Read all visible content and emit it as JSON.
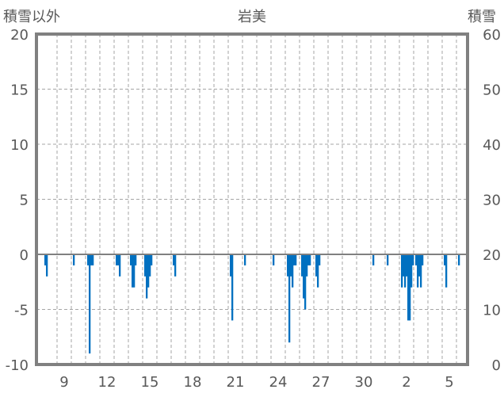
{
  "chart_data": {
    "type": "bar",
    "title": "岩美",
    "left_axis_label": "積雪以外",
    "right_axis_label": "積雪",
    "ylim_left": [
      -10,
      20
    ],
    "ylim_right": [
      0,
      60
    ],
    "yticks_left": [
      "20",
      "15",
      "10",
      "5",
      "0",
      "-5",
      "-10"
    ],
    "yticks_right": [
      "60",
      "50",
      "40",
      "30",
      "20",
      "10",
      "0"
    ],
    "x_tick_labels": [
      "9",
      "12",
      "15",
      "18",
      "21",
      "24",
      "27",
      "30",
      "2",
      "5"
    ],
    "grid": true,
    "colors": {
      "bar": "#0070c0",
      "frame": "#808080",
      "grid": "#a6a6a6",
      "zero_line": "#808080"
    },
    "series": [
      {
        "name": "積雪以外",
        "axis": "left",
        "values": [
          {
            "x": "8-1",
            "y": -1
          },
          {
            "x": "8-2",
            "y": -2
          },
          {
            "x": "10-1",
            "y": -1
          },
          {
            "x": "11-1",
            "y": -1
          },
          {
            "x": "11-2",
            "y": -9
          },
          {
            "x": "11-3",
            "y": -1
          },
          {
            "x": "11-4",
            "y": -1
          },
          {
            "x": "13-1",
            "y": -1
          },
          {
            "x": "13-2",
            "y": -1
          },
          {
            "x": "13-3",
            "y": -2
          },
          {
            "x": "14-1",
            "y": -1
          },
          {
            "x": "14-2",
            "y": -3
          },
          {
            "x": "14-3",
            "y": -3
          },
          {
            "x": "14-4",
            "y": -1
          },
          {
            "x": "15-1",
            "y": -2
          },
          {
            "x": "15-2",
            "y": -4
          },
          {
            "x": "15-3",
            "y": -3
          },
          {
            "x": "15-4",
            "y": -2
          },
          {
            "x": "15-5",
            "y": -1
          },
          {
            "x": "17-1",
            "y": -1
          },
          {
            "x": "17-2",
            "y": -2
          },
          {
            "x": "21-1",
            "y": -2
          },
          {
            "x": "21-2",
            "y": -6
          },
          {
            "x": "22-1",
            "y": -1
          },
          {
            "x": "24-1",
            "y": -1
          },
          {
            "x": "25-1",
            "y": -2
          },
          {
            "x": "25-2",
            "y": -8
          },
          {
            "x": "25-3",
            "y": -2
          },
          {
            "x": "25-4",
            "y": -3
          },
          {
            "x": "25-5",
            "y": -1
          },
          {
            "x": "25-6",
            "y": -1
          },
          {
            "x": "26-1",
            "y": -2
          },
          {
            "x": "26-2",
            "y": -4
          },
          {
            "x": "26-3",
            "y": -5
          },
          {
            "x": "26-4",
            "y": -2
          },
          {
            "x": "26-5",
            "y": -1
          },
          {
            "x": "26-6",
            "y": -1
          },
          {
            "x": "27-1",
            "y": -2
          },
          {
            "x": "27-2",
            "y": -3
          },
          {
            "x": "27-3",
            "y": -1
          },
          {
            "x": "31-1",
            "y": -1
          },
          {
            "x": "1-1",
            "y": -1
          },
          {
            "x": "2-1",
            "y": -3
          },
          {
            "x": "2-2",
            "y": -2
          },
          {
            "x": "2-3",
            "y": -3
          },
          {
            "x": "2-4",
            "y": -2
          },
          {
            "x": "2-5",
            "y": -6
          },
          {
            "x": "2-6",
            "y": -6
          },
          {
            "x": "2-7",
            "y": -3
          },
          {
            "x": "2-8",
            "y": -1
          },
          {
            "x": "3-1",
            "y": -1
          },
          {
            "x": "3-2",
            "y": -3
          },
          {
            "x": "3-3",
            "y": -2
          },
          {
            "x": "3-4",
            "y": -3
          },
          {
            "x": "3-5",
            "y": -1
          },
          {
            "x": "5-1",
            "y": -1
          },
          {
            "x": "5-2",
            "y": -3
          },
          {
            "x": "6-1",
            "y": -1
          }
        ]
      }
    ]
  }
}
